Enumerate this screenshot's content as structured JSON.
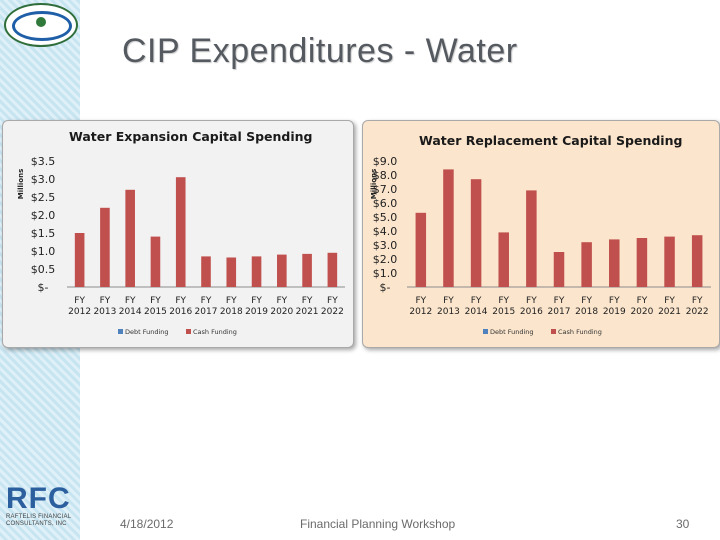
{
  "slide": {
    "title": "CIP Expenditures - Water",
    "date": "4/18/2012",
    "footer_center": "Financial Planning Workshop",
    "page_number": "30",
    "logo_bottom_letters": "RFC",
    "logo_bottom_sub": "RAFTELIS FINANCIAL CONSULTANTS, INC"
  },
  "chart_data": [
    {
      "type": "bar",
      "title": "Water Expansion Capital Spending",
      "ylabel": "Millions",
      "ylim": [
        0,
        3.5
      ],
      "yticks": [
        "$3.5",
        "$3.0",
        "$2.5",
        "$2.0",
        "$1.5",
        "$1.0",
        "$0.5",
        "$-"
      ],
      "categories": [
        "FY 2012",
        "FY 2013",
        "FY 2014",
        "FY 2015",
        "FY 2016",
        "FY 2017",
        "FY 2018",
        "FY 2019",
        "FY 2020",
        "FY 2021",
        "FY 2022"
      ],
      "series": [
        {
          "name": "Debt Funding",
          "color": "#4f81bd",
          "values": [
            0,
            0,
            0,
            0,
            0,
            0,
            0,
            0,
            0,
            0,
            0
          ]
        },
        {
          "name": "Cash Funding",
          "color": "#c0504d",
          "values": [
            1.5,
            2.2,
            2.7,
            1.4,
            3.05,
            0.85,
            0.82,
            0.85,
            0.9,
            0.92,
            0.95
          ]
        }
      ],
      "grid": false,
      "legend": "bottom",
      "background": "#f2f2f2"
    },
    {
      "type": "bar",
      "title": "Water Replacement Capital Spending",
      "ylabel": "Millions",
      "ylim": [
        0,
        9
      ],
      "yticks": [
        "$9.0",
        "$8.0",
        "$7.0",
        "$6.0",
        "$5.0",
        "$4.0",
        "$3.0",
        "$2.0",
        "$1.0",
        "$-"
      ],
      "categories": [
        "FY 2012",
        "FY 2013",
        "FY 2014",
        "FY 2015",
        "FY 2016",
        "FY 2017",
        "FY 2018",
        "FY 2019",
        "FY 2020",
        "FY 2021",
        "FY 2022"
      ],
      "series": [
        {
          "name": "Debt Funding",
          "color": "#4f81bd",
          "values": [
            0,
            0,
            0,
            0,
            0,
            0,
            0,
            0,
            0,
            0,
            0
          ]
        },
        {
          "name": "Cash Funding",
          "color": "#c0504d",
          "values": [
            5.3,
            8.4,
            7.7,
            3.9,
            6.9,
            2.5,
            3.2,
            3.4,
            3.5,
            3.6,
            3.7
          ]
        }
      ],
      "grid": false,
      "legend": "bottom",
      "background": "#fbe5cc"
    }
  ]
}
